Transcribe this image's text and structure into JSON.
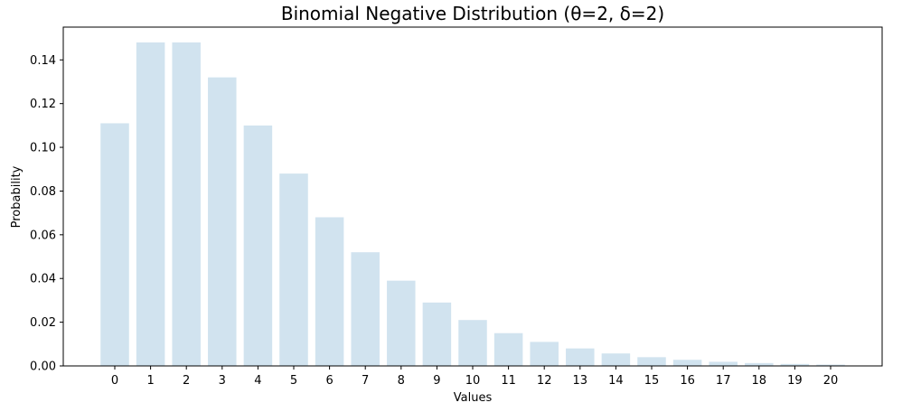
{
  "chart_data": {
    "type": "bar",
    "title": "Binomial Negative Distribution (θ=2, δ=2)",
    "xlabel": "Values",
    "ylabel": "Probability",
    "categories": [
      "0",
      "1",
      "2",
      "3",
      "4",
      "5",
      "6",
      "7",
      "8",
      "9",
      "10",
      "11",
      "12",
      "13",
      "14",
      "15",
      "16",
      "17",
      "18",
      "19",
      "20"
    ],
    "values": [
      0.111,
      0.148,
      0.148,
      0.132,
      0.11,
      0.088,
      0.068,
      0.052,
      0.039,
      0.029,
      0.021,
      0.015,
      0.011,
      0.008,
      0.0057,
      0.004,
      0.0028,
      0.0019,
      0.0013,
      0.0009,
      0.0006
    ],
    "yticks": [
      "0.00",
      "0.02",
      "0.04",
      "0.06",
      "0.08",
      "0.10",
      "0.12",
      "0.14"
    ],
    "ylim": [
      0,
      0.155
    ],
    "grid": false,
    "bar_color": "#d1e3ef"
  }
}
